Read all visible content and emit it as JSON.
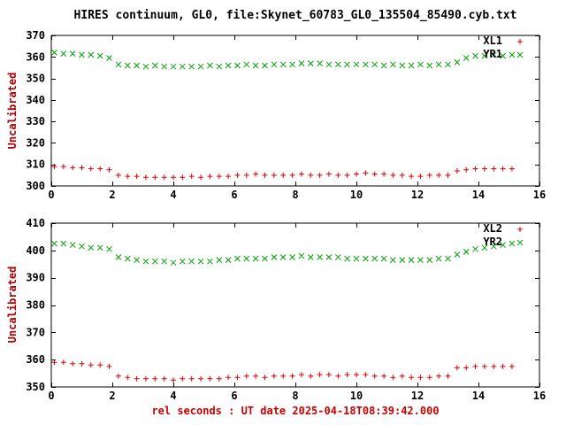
{
  "chart_data": [
    {
      "type": "scatter",
      "title": "HIRES continuum, GL0, file:Skynet_60783_GL0_135504_85490.cyb.txt",
      "ylabel": "Uncalibrated",
      "xlim": [
        0,
        16
      ],
      "ylim": [
        300,
        370
      ],
      "xticks": [
        0,
        2,
        4,
        6,
        8,
        10,
        12,
        14,
        16
      ],
      "yticks": [
        300,
        310,
        320,
        330,
        340,
        350,
        360,
        370
      ],
      "grid": false,
      "legend_position": "top-right",
      "x": [
        0.1,
        0.4,
        0.7,
        1.0,
        1.3,
        1.6,
        1.9,
        2.2,
        2.5,
        2.8,
        3.1,
        3.4,
        3.7,
        4.0,
        4.3,
        4.6,
        4.9,
        5.2,
        5.5,
        5.8,
        6.1,
        6.4,
        6.7,
        7.0,
        7.3,
        7.6,
        7.9,
        8.2,
        8.5,
        8.8,
        9.1,
        9.4,
        9.7,
        10.0,
        10.3,
        10.6,
        10.9,
        11.2,
        11.5,
        11.8,
        12.1,
        12.4,
        12.7,
        13.0,
        13.3,
        13.6,
        13.9,
        14.2,
        14.5,
        14.8,
        15.1
      ],
      "series": [
        {
          "name": "XL1",
          "marker": "plus",
          "color": "#dd0000",
          "values": [
            309,
            309,
            308.5,
            308.5,
            308,
            308,
            307.5,
            305,
            304.5,
            304.5,
            304,
            304,
            304,
            304,
            304,
            304.5,
            304,
            304.5,
            304.5,
            304.5,
            305,
            305,
            305.5,
            305,
            305,
            305,
            305,
            305.5,
            305,
            305,
            305.5,
            305,
            305,
            305.5,
            306,
            305.5,
            305.5,
            305,
            305,
            304.5,
            304.5,
            305,
            305,
            305,
            307,
            307.5,
            308,
            308,
            308,
            308,
            308
          ]
        },
        {
          "name": "YR1",
          "marker": "cross",
          "color": "#00a000",
          "values": [
            362,
            361.5,
            361.5,
            361,
            361,
            360.5,
            359.5,
            356.5,
            356,
            356,
            355.5,
            356,
            355.5,
            355.5,
            355.5,
            355.5,
            355.5,
            356,
            355.5,
            356,
            356,
            356.5,
            356,
            356,
            356.5,
            356.5,
            356.5,
            357,
            357,
            357,
            356.5,
            356.5,
            356.5,
            356.5,
            356.5,
            356.5,
            356,
            356.5,
            356,
            356,
            356.5,
            356,
            356.5,
            356.5,
            357.5,
            359.5,
            360.5,
            360.5,
            361,
            360.5,
            361
          ]
        }
      ]
    },
    {
      "type": "scatter",
      "xlabel": "rel seconds : UT date 2025-04-18T08:39:42.000",
      "ylabel": "Uncalibrated",
      "xlim": [
        0,
        16
      ],
      "ylim": [
        350,
        410
      ],
      "xticks": [
        0,
        2,
        4,
        6,
        8,
        10,
        12,
        14,
        16
      ],
      "yticks": [
        350,
        360,
        370,
        380,
        390,
        400,
        410
      ],
      "grid": false,
      "legend_position": "top-right",
      "x": [
        0.1,
        0.4,
        0.7,
        1.0,
        1.3,
        1.6,
        1.9,
        2.2,
        2.5,
        2.8,
        3.1,
        3.4,
        3.7,
        4.0,
        4.3,
        4.6,
        4.9,
        5.2,
        5.5,
        5.8,
        6.1,
        6.4,
        6.7,
        7.0,
        7.3,
        7.6,
        7.9,
        8.2,
        8.5,
        8.8,
        9.1,
        9.4,
        9.7,
        10.0,
        10.3,
        10.6,
        10.9,
        11.2,
        11.5,
        11.8,
        12.1,
        12.4,
        12.7,
        13.0,
        13.3,
        13.6,
        13.9,
        14.2,
        14.5,
        14.8,
        15.1
      ],
      "series": [
        {
          "name": "XL2",
          "marker": "plus",
          "color": "#dd0000",
          "values": [
            359,
            359,
            358.5,
            358.5,
            358,
            358,
            357.5,
            354,
            353.5,
            353,
            353,
            353,
            353,
            352.5,
            353,
            353,
            353,
            353,
            353,
            353.5,
            353.5,
            354,
            354,
            353.5,
            354,
            354,
            354,
            354.5,
            354,
            354.5,
            354.5,
            354,
            354.5,
            354.5,
            354.5,
            354,
            354,
            353.5,
            354,
            353.5,
            353.5,
            353.5,
            354,
            354,
            357,
            357,
            357.5,
            357.5,
            357.5,
            357.5,
            357.5
          ]
        },
        {
          "name": "YR2",
          "marker": "cross",
          "color": "#00a000",
          "values": [
            402.5,
            402.5,
            402,
            401.5,
            401,
            401,
            400.5,
            397.5,
            397,
            396.5,
            396,
            396,
            396,
            395.5,
            396,
            396,
            396,
            396,
            396.5,
            396.5,
            397,
            397,
            397,
            397,
            397.5,
            397.5,
            397.5,
            398,
            397.5,
            397.5,
            397.5,
            397.5,
            397,
            397,
            397,
            397,
            397,
            396.5,
            396.5,
            396.5,
            396.5,
            396.5,
            397,
            397,
            398.5,
            399.5,
            400.5,
            401,
            401.5,
            402,
            402.5
          ]
        }
      ]
    }
  ],
  "colors": {
    "marker_red": "#dd0000",
    "marker_green": "#00a000",
    "axis_label": "#aa0000",
    "x_label": "#cc0000",
    "title": "#000000",
    "axis_line": "#000000"
  }
}
